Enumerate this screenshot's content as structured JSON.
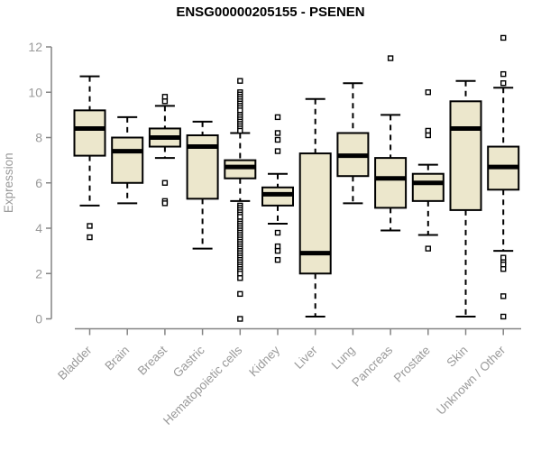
{
  "title": "ENSG00000205155 - PSENEN",
  "colors": {
    "background": "#FFFFFF",
    "box_fill": "#ECE7CC",
    "box_stroke": "#000000",
    "median_stroke": "#000000",
    "whisker_stroke": "#000000",
    "outlier_fill": "#FFFFFF",
    "outlier_stroke": "#000000",
    "axis_line": "#848484",
    "axis_text": "#9A9A9A",
    "title_text": "#000000"
  },
  "chart_data": {
    "type": "boxplot",
    "title": "ENSG00000205155 - PSENEN",
    "xlabel": "",
    "ylabel": "Expression",
    "ylim": [
      0,
      12
    ],
    "yticks": [
      0,
      2,
      4,
      6,
      8,
      10,
      12
    ],
    "grid": false,
    "legend": false,
    "x_tick_label_rotation_deg": 45,
    "categories": [
      "Bladder",
      "Brain",
      "Breast",
      "Gastric",
      "Hematopoietic cells",
      "Kidney",
      "Liver",
      "Lung",
      "Pancreas",
      "Prostate",
      "Skin",
      "Unknown / Other"
    ],
    "boxes": [
      {
        "category": "Bladder",
        "whisker_low": 5.0,
        "q1": 7.2,
        "median": 8.4,
        "q3": 9.2,
        "whisker_high": 10.7,
        "outliers": [
          4.1,
          3.6
        ]
      },
      {
        "category": "Brain",
        "whisker_low": 5.1,
        "q1": 6.0,
        "median": 7.4,
        "q3": 8.0,
        "whisker_high": 8.9,
        "outliers": []
      },
      {
        "category": "Breast",
        "whisker_low": 7.1,
        "q1": 7.6,
        "median": 8.0,
        "q3": 8.4,
        "whisker_high": 9.4,
        "outliers": [
          9.8,
          9.6,
          6.0,
          5.2,
          5.1
        ]
      },
      {
        "category": "Gastric",
        "whisker_low": 3.1,
        "q1": 5.3,
        "median": 7.6,
        "q3": 8.1,
        "whisker_high": 8.7,
        "outliers": []
      },
      {
        "category": "Hematopoietic cells",
        "whisker_low": 5.2,
        "q1": 6.2,
        "median": 6.7,
        "q3": 7.0,
        "whisker_high": 8.2,
        "outliers": [
          10.5,
          10.0,
          9.9,
          9.8,
          9.7,
          9.6,
          9.5,
          9.4,
          9.3,
          9.2,
          9.0,
          8.9,
          8.8,
          8.7,
          8.6,
          8.5,
          8.4,
          8.3,
          5.0,
          4.9,
          4.8,
          4.7,
          4.6,
          4.5,
          4.3,
          4.2,
          4.1,
          4.0,
          3.9,
          3.8,
          3.7,
          3.6,
          3.5,
          3.4,
          3.3,
          3.2,
          3.1,
          3.0,
          2.9,
          2.8,
          2.7,
          2.6,
          2.5,
          2.4,
          2.3,
          2.2,
          2.1,
          2.0,
          1.8,
          1.1,
          0.0
        ]
      },
      {
        "category": "Kidney",
        "whisker_low": 4.2,
        "q1": 5.0,
        "median": 5.5,
        "q3": 5.8,
        "whisker_high": 6.4,
        "outliers": [
          8.9,
          8.2,
          7.9,
          7.4,
          3.8,
          3.2,
          3.0,
          2.6
        ]
      },
      {
        "category": "Liver",
        "whisker_low": 0.1,
        "q1": 2.0,
        "median": 2.9,
        "q3": 7.3,
        "whisker_high": 9.7,
        "outliers": []
      },
      {
        "category": "Lung",
        "whisker_low": 5.1,
        "q1": 6.3,
        "median": 7.2,
        "q3": 8.2,
        "whisker_high": 10.4,
        "outliers": []
      },
      {
        "category": "Pancreas",
        "whisker_low": 3.9,
        "q1": 4.9,
        "median": 6.2,
        "q3": 7.1,
        "whisker_high": 9.0,
        "outliers": [
          11.5
        ]
      },
      {
        "category": "Prostate",
        "whisker_low": 3.7,
        "q1": 5.2,
        "median": 6.0,
        "q3": 6.4,
        "whisker_high": 6.8,
        "outliers": [
          10.0,
          8.3,
          8.1,
          3.1
        ]
      },
      {
        "category": "Skin",
        "whisker_low": 0.1,
        "q1": 4.8,
        "median": 8.4,
        "q3": 9.6,
        "whisker_high": 10.5,
        "outliers": []
      },
      {
        "category": "Unknown / Other",
        "whisker_low": 3.0,
        "q1": 5.7,
        "median": 6.7,
        "q3": 7.6,
        "whisker_high": 10.2,
        "outliers": [
          12.4,
          10.8,
          10.4,
          2.7,
          2.5,
          2.4,
          2.2,
          1.0,
          0.1
        ]
      }
    ]
  }
}
